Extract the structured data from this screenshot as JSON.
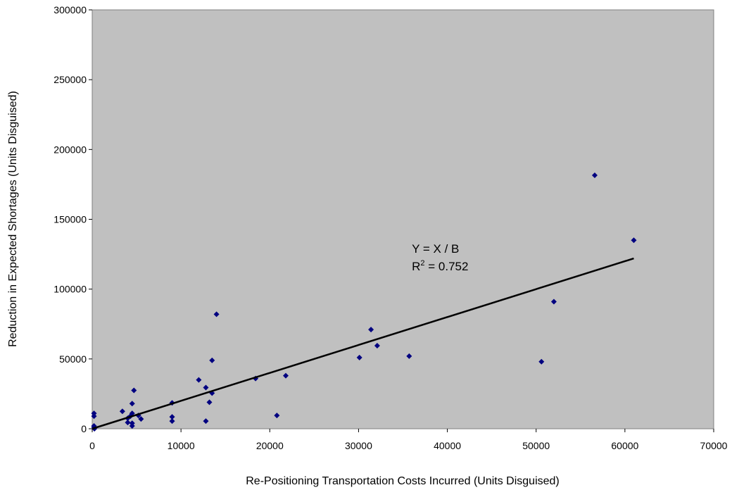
{
  "chart_data": {
    "type": "scatter",
    "xlabel": "Re-Positioning Transportation Costs Incurred (Units Disguised)",
    "ylabel": "Reduction in Expected Shortages (Units Disguised)",
    "xlim": [
      0,
      70000
    ],
    "ylim": [
      0,
      300000
    ],
    "x_ticks": [
      0,
      10000,
      20000,
      30000,
      40000,
      50000,
      60000,
      70000
    ],
    "y_ticks": [
      0,
      50000,
      100000,
      150000,
      200000,
      250000,
      300000
    ],
    "x_tick_labels": [
      "0",
      "10000",
      "20000",
      "30000",
      "40000",
      "50000",
      "60000",
      "70000"
    ],
    "y_tick_labels": [
      "0",
      "50000",
      "100000",
      "150000",
      "200000",
      "250000",
      "300000"
    ],
    "grid": false,
    "plot_background": "#C0C0C0",
    "marker_color": "#000080",
    "trendline_color": "#000000",
    "points": [
      [
        200,
        11000
      ],
      [
        200,
        9000
      ],
      [
        200,
        2000
      ],
      [
        200,
        1000
      ],
      [
        250,
        0
      ],
      [
        3400,
        12500
      ],
      [
        4000,
        4500
      ],
      [
        4000,
        7500
      ],
      [
        4300,
        9000
      ],
      [
        4500,
        2000
      ],
      [
        4500,
        4000
      ],
      [
        4500,
        11000
      ],
      [
        4500,
        18000
      ],
      [
        4700,
        27500
      ],
      [
        5200,
        9500
      ],
      [
        5500,
        7000
      ],
      [
        9000,
        5500
      ],
      [
        9000,
        8500
      ],
      [
        9000,
        18500
      ],
      [
        12000,
        35000
      ],
      [
        12800,
        5500
      ],
      [
        12800,
        29500
      ],
      [
        13200,
        19000
      ],
      [
        13500,
        25500
      ],
      [
        13500,
        49000
      ],
      [
        14000,
        82000
      ],
      [
        18400,
        36000
      ],
      [
        20800,
        9500
      ],
      [
        21800,
        38000
      ],
      [
        30100,
        51000
      ],
      [
        31400,
        71000
      ],
      [
        32100,
        59500
      ],
      [
        35700,
        52000
      ],
      [
        50600,
        48000
      ],
      [
        52000,
        91000
      ],
      [
        56600,
        181500
      ],
      [
        61000,
        135000
      ]
    ],
    "trendline": {
      "x": [
        0,
        61000
      ],
      "y": [
        0,
        122000
      ]
    },
    "annotation": {
      "equation": "Y = X / B",
      "r2_prefix": "R",
      "r2_sup": "2",
      "r2_value": " = 0.752",
      "at": [
        36000,
        126000
      ]
    }
  }
}
